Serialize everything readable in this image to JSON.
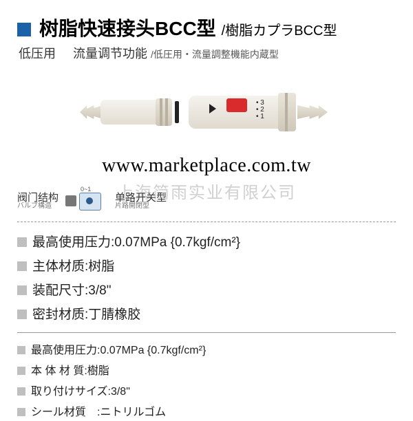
{
  "header": {
    "title_main": "树脂快速接头BCC型",
    "title_sub": "/樹脂カプラBCC型",
    "subtitle_cn1": "低压用",
    "subtitle_cn2": "流量调节功能",
    "subtitle_jp": "/低圧用・流量調整機能内蔵型"
  },
  "watermark": {
    "url": "www.marketplace.com.tw",
    "company": "上海简雨实业有限公司"
  },
  "valve": {
    "label_cn": "阀门结构",
    "label_jp": "バルブ構造",
    "range": "0~1",
    "type_cn": "单路开关型",
    "type_jp": "片路開閉型"
  },
  "specs_cn": [
    "最高使用压力:0.07MPa {0.7kgf/cm²}",
    "主体材质:树脂",
    "装配尺寸:3/8\"",
    "密封材质:丁腈橡胶"
  ],
  "specs_jp": [
    "最高使用圧力:0.07MPa {0.7kgf/cm²}",
    "本 体 材 質:樹脂",
    "取り付けサイズ:3/8\"",
    "シール材質　:ニトリルゴム"
  ],
  "colors": {
    "brand_blue": "#1961a8",
    "red_button": "#d92b2b",
    "spec_bullet": "#bfbfbf"
  }
}
